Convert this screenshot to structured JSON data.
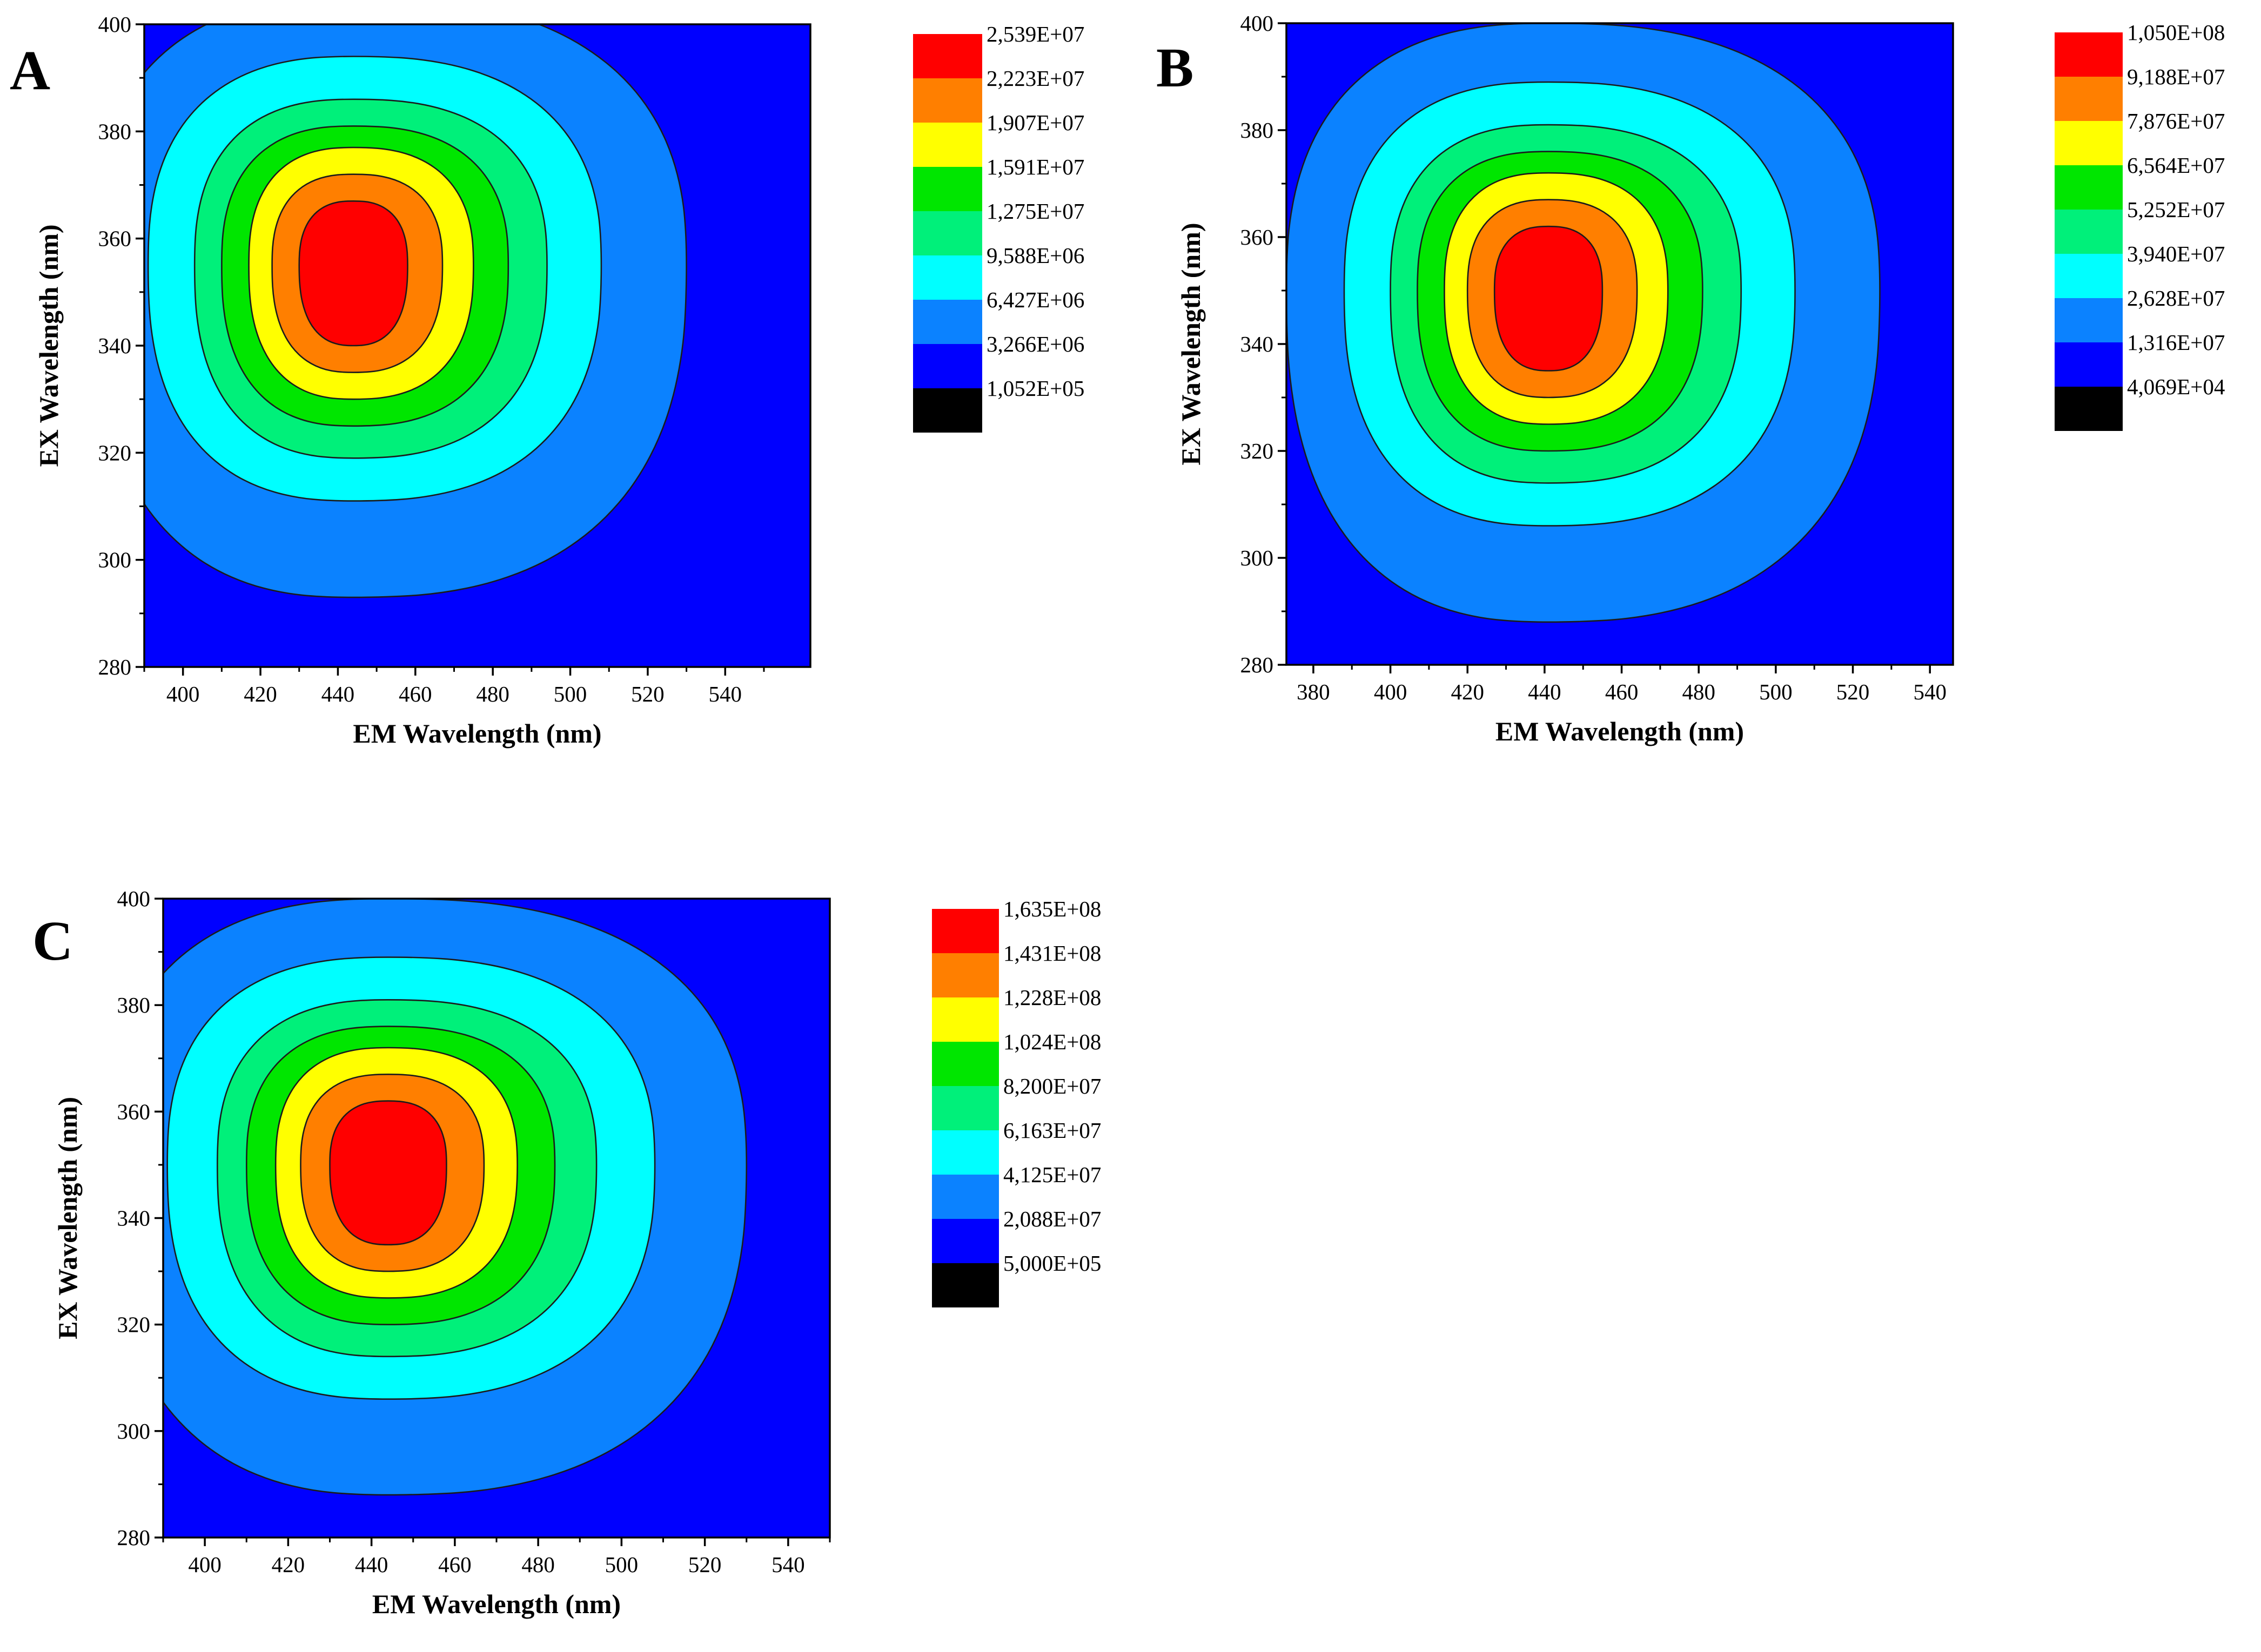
{
  "chart_data": [
    {
      "panel": "A",
      "type": "contour",
      "xlabel": "EM Wavelength (nm)",
      "ylabel": "EX Wavelength (nm)",
      "xlim": [
        390,
        562
      ],
      "ylim": [
        280,
        400
      ],
      "xticks": [
        400,
        420,
        440,
        460,
        480,
        500,
        520,
        540
      ],
      "yticks": [
        280,
        300,
        320,
        340,
        360,
        380,
        400
      ],
      "peak": {
        "em": 444,
        "ex": 355
      },
      "levels": [
        {
          "label": "2,539E+07",
          "color": "#ff0000"
        },
        {
          "label": "2,223E+07",
          "color": "#ff7f00"
        },
        {
          "label": "1,907E+07",
          "color": "#ffff00"
        },
        {
          "label": "1,591E+07",
          "color": "#00e600"
        },
        {
          "label": "1,275E+07",
          "color": "#00f07a"
        },
        {
          "label": "9,588E+06",
          "color": "#00ffff"
        },
        {
          "label": "6,427E+06",
          "color": "#0b82ff"
        },
        {
          "label": "3,266E+06",
          "color": "#0000ff"
        },
        {
          "label": "1,052E+05",
          "color": "#000000"
        }
      ]
    },
    {
      "panel": "B",
      "type": "contour",
      "xlabel": "EM Wavelength (nm)",
      "ylabel": "EX Wavelength (nm)",
      "xlim": [
        373,
        546
      ],
      "ylim": [
        280,
        400
      ],
      "xticks": [
        380,
        400,
        420,
        440,
        460,
        480,
        500,
        520,
        540
      ],
      "yticks": [
        280,
        300,
        320,
        340,
        360,
        380,
        400
      ],
      "peak": {
        "em": 441,
        "ex": 350
      },
      "levels": [
        {
          "label": "1,050E+08",
          "color": "#ff0000"
        },
        {
          "label": "9,188E+07",
          "color": "#ff7f00"
        },
        {
          "label": "7,876E+07",
          "color": "#ffff00"
        },
        {
          "label": "6,564E+07",
          "color": "#00e600"
        },
        {
          "label": "5,252E+07",
          "color": "#00f07a"
        },
        {
          "label": "3,940E+07",
          "color": "#00ffff"
        },
        {
          "label": "2,628E+07",
          "color": "#0b82ff"
        },
        {
          "label": "1,316E+07",
          "color": "#0000ff"
        },
        {
          "label": "4,069E+04",
          "color": "#000000"
        }
      ]
    },
    {
      "panel": "C",
      "type": "contour",
      "xlabel": "EM Wavelength (nm)",
      "ylabel": "EX Wavelength (nm)",
      "xlim": [
        390,
        550
      ],
      "ylim": [
        280,
        400
      ],
      "xticks": [
        400,
        420,
        440,
        460,
        480,
        500,
        520,
        540
      ],
      "yticks": [
        280,
        300,
        320,
        340,
        360,
        380,
        400
      ],
      "peak": {
        "em": 444,
        "ex": 350
      },
      "levels": [
        {
          "label": "1,635E+08",
          "color": "#ff0000"
        },
        {
          "label": "1,431E+08",
          "color": "#ff7f00"
        },
        {
          "label": "1,228E+08",
          "color": "#ffff00"
        },
        {
          "label": "1,024E+08",
          "color": "#00e600"
        },
        {
          "label": "8,200E+07",
          "color": "#00f07a"
        },
        {
          "label": "6,163E+07",
          "color": "#00ffff"
        },
        {
          "label": "4,125E+07",
          "color": "#0b82ff"
        },
        {
          "label": "2,088E+07",
          "color": "#0000ff"
        },
        {
          "label": "5,000E+05",
          "color": "#000000"
        }
      ]
    }
  ]
}
